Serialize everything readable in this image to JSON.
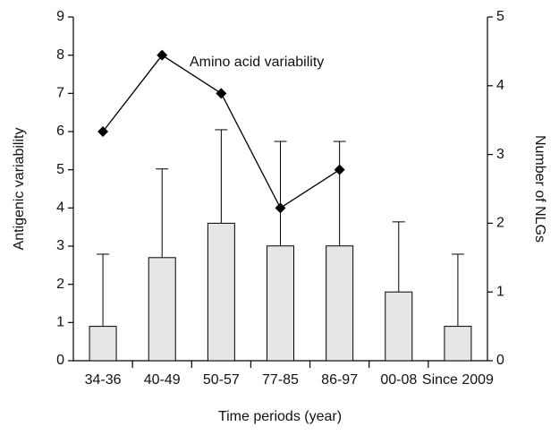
{
  "chart_data": {
    "type": "bar",
    "categories": [
      "34-36",
      "40-49",
      "50-57",
      "77-85",
      "86-97",
      "00-08",
      "Since 2009"
    ],
    "bars": {
      "values": [
        0.5,
        1.5,
        2,
        1.67,
        1.67,
        1,
        0.5
      ],
      "errors": [
        1.05,
        1.29,
        1.36,
        1.52,
        1.52,
        1.02,
        1.05
      ],
      "color": "#e6e6e6",
      "axis": "y2"
    },
    "line": {
      "name": "Amino acid variability",
      "values": [
        6,
        8,
        7,
        4,
        5,
        null,
        null
      ],
      "color": "#000000",
      "axis": "y"
    },
    "xlabel": "Time periods (year)",
    "ylabel": "Antigenic variability",
    "y2label": "Number of NLGs",
    "ylim": [
      0,
      9
    ],
    "yticks": [
      0,
      1,
      2,
      3,
      4,
      5,
      6,
      7,
      8,
      9
    ],
    "y2lim": [
      0,
      5
    ],
    "y2ticks": [
      0,
      1,
      2,
      3,
      4,
      5
    ]
  }
}
